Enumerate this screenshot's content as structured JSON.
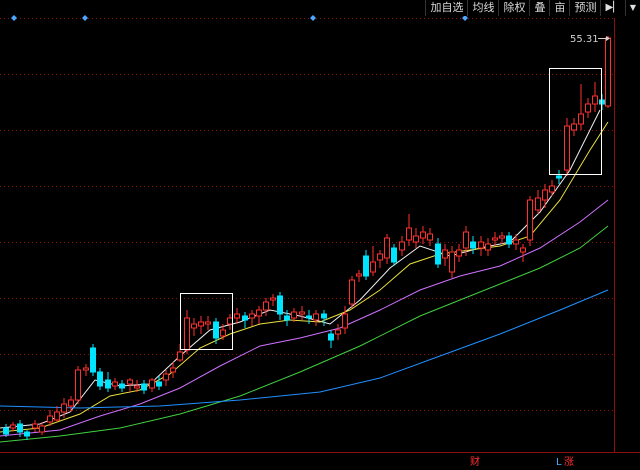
{
  "toolbar": {
    "buttons": [
      "加自选",
      "均线",
      "除权",
      "叠",
      "亩",
      "预测"
    ],
    "pin_icon": "pin-icon",
    "dropdown_icon": "dropdown-arrow-icon"
  },
  "chart_data": {
    "type": "candlestick",
    "price_max_label": "55.31",
    "date_markers": [
      "财",
      "L",
      "涨"
    ],
    "colors": {
      "up": "#ff3030",
      "down": "#00e5ff",
      "ma_white": "#f0f0f0",
      "ma_yellow": "#e8e040",
      "ma_purple": "#d070ff",
      "ma_green": "#40d040",
      "ma_blue": "#2090ff",
      "grid": "#8a1010",
      "highlight_box": "#ffffff"
    }
  }
}
